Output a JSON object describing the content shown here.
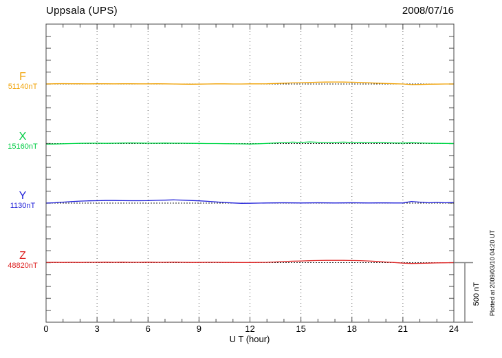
{
  "header": {
    "title": "Uppsala (UPS)",
    "date": "2008/07/16"
  },
  "footer_note": "Plotted at 2009/03/10 04:20 UT",
  "axis": {
    "xlabel": "U T (hour)",
    "x_ticks": [
      "0",
      "3",
      "6",
      "9",
      "12",
      "15",
      "18",
      "21",
      "24"
    ]
  },
  "scale_bar": {
    "label": "500 nT",
    "value_nT": 500
  },
  "colors": {
    "F": "#F0A000",
    "X": "#00D848",
    "Y": "#2020D8",
    "Z": "#DD2222",
    "frame": "#444444",
    "grid": "#555555",
    "baseline": "#222222",
    "amp_tick": "#808080",
    "scalebar": "#808080"
  },
  "chart_data": {
    "type": "line",
    "title": "Uppsala (UPS)",
    "date": "2008/07/16",
    "xlabel": "U T (hour)",
    "x_range": [
      0,
      24
    ],
    "x_major_ticks": [
      0,
      3,
      6,
      9,
      12,
      15,
      18,
      21,
      24
    ],
    "x_minor_step_hours": 1,
    "grid_hours": [
      3,
      6,
      9,
      12,
      15,
      18,
      21
    ],
    "amp_tick_step_nT": 100,
    "scale_nT_per_div": 500,
    "hours_step": 0.5,
    "legend_position": "left",
    "grid": true,
    "series": [
      {
        "name": "F",
        "label": "F",
        "baseline_nT": 51140,
        "baseline_label": "51140nT",
        "offsets_nT": [
          0,
          2,
          3,
          2,
          2,
          1,
          2,
          2,
          1,
          2,
          2,
          1,
          1,
          2,
          1,
          0,
          -1,
          -2,
          -1,
          0,
          1,
          1,
          0,
          0,
          1,
          1,
          2,
          4,
          7,
          9,
          11,
          13,
          15,
          16,
          17,
          16,
          15,
          13,
          10,
          7,
          4,
          2,
          0,
          -5,
          -4,
          -2,
          -1,
          0,
          0
        ]
      },
      {
        "name": "X",
        "label": "X",
        "baseline_nT": 15160,
        "baseline_label": "15160nT",
        "offsets_nT": [
          -5,
          -4,
          -2,
          0,
          2,
          3,
          3,
          2,
          3,
          4,
          5,
          4,
          3,
          3,
          4,
          3,
          3,
          2,
          1,
          0,
          0,
          -1,
          -2,
          -3,
          -4,
          -2,
          1,
          5,
          8,
          12,
          9,
          14,
          11,
          9,
          10,
          12,
          9,
          11,
          9,
          11,
          7,
          5,
          4,
          7,
          5,
          3,
          2,
          1,
          0
        ]
      },
      {
        "name": "Y",
        "label": "Y",
        "baseline_nT": 1130,
        "baseline_label": "1130nT",
        "offsets_nT": [
          0,
          3,
          8,
          13,
          17,
          19,
          20,
          22,
          22,
          21,
          20,
          20,
          21,
          23,
          25,
          27,
          25,
          22,
          19,
          15,
          10,
          5,
          1,
          -2,
          -1,
          0,
          1,
          2,
          3,
          2,
          1,
          2,
          3,
          2,
          1,
          2,
          3,
          2,
          1,
          2,
          2,
          1,
          1,
          14,
          8,
          3,
          5,
          3,
          5
        ]
      },
      {
        "name": "Z",
        "label": "Z",
        "baseline_nT": 48820,
        "baseline_label": "48820nT",
        "offsets_nT": [
          2,
          3,
          2,
          3,
          2,
          3,
          3,
          4,
          3,
          4,
          3,
          3,
          4,
          3,
          3,
          4,
          3,
          2,
          2,
          3,
          3,
          2,
          2,
          1,
          1,
          2,
          3,
          6,
          9,
          12,
          14,
          16,
          18,
          19,
          19,
          19,
          18,
          17,
          14,
          10,
          5,
          1,
          -4,
          -7,
          -6,
          -4,
          -2,
          -1,
          0
        ]
      }
    ]
  }
}
